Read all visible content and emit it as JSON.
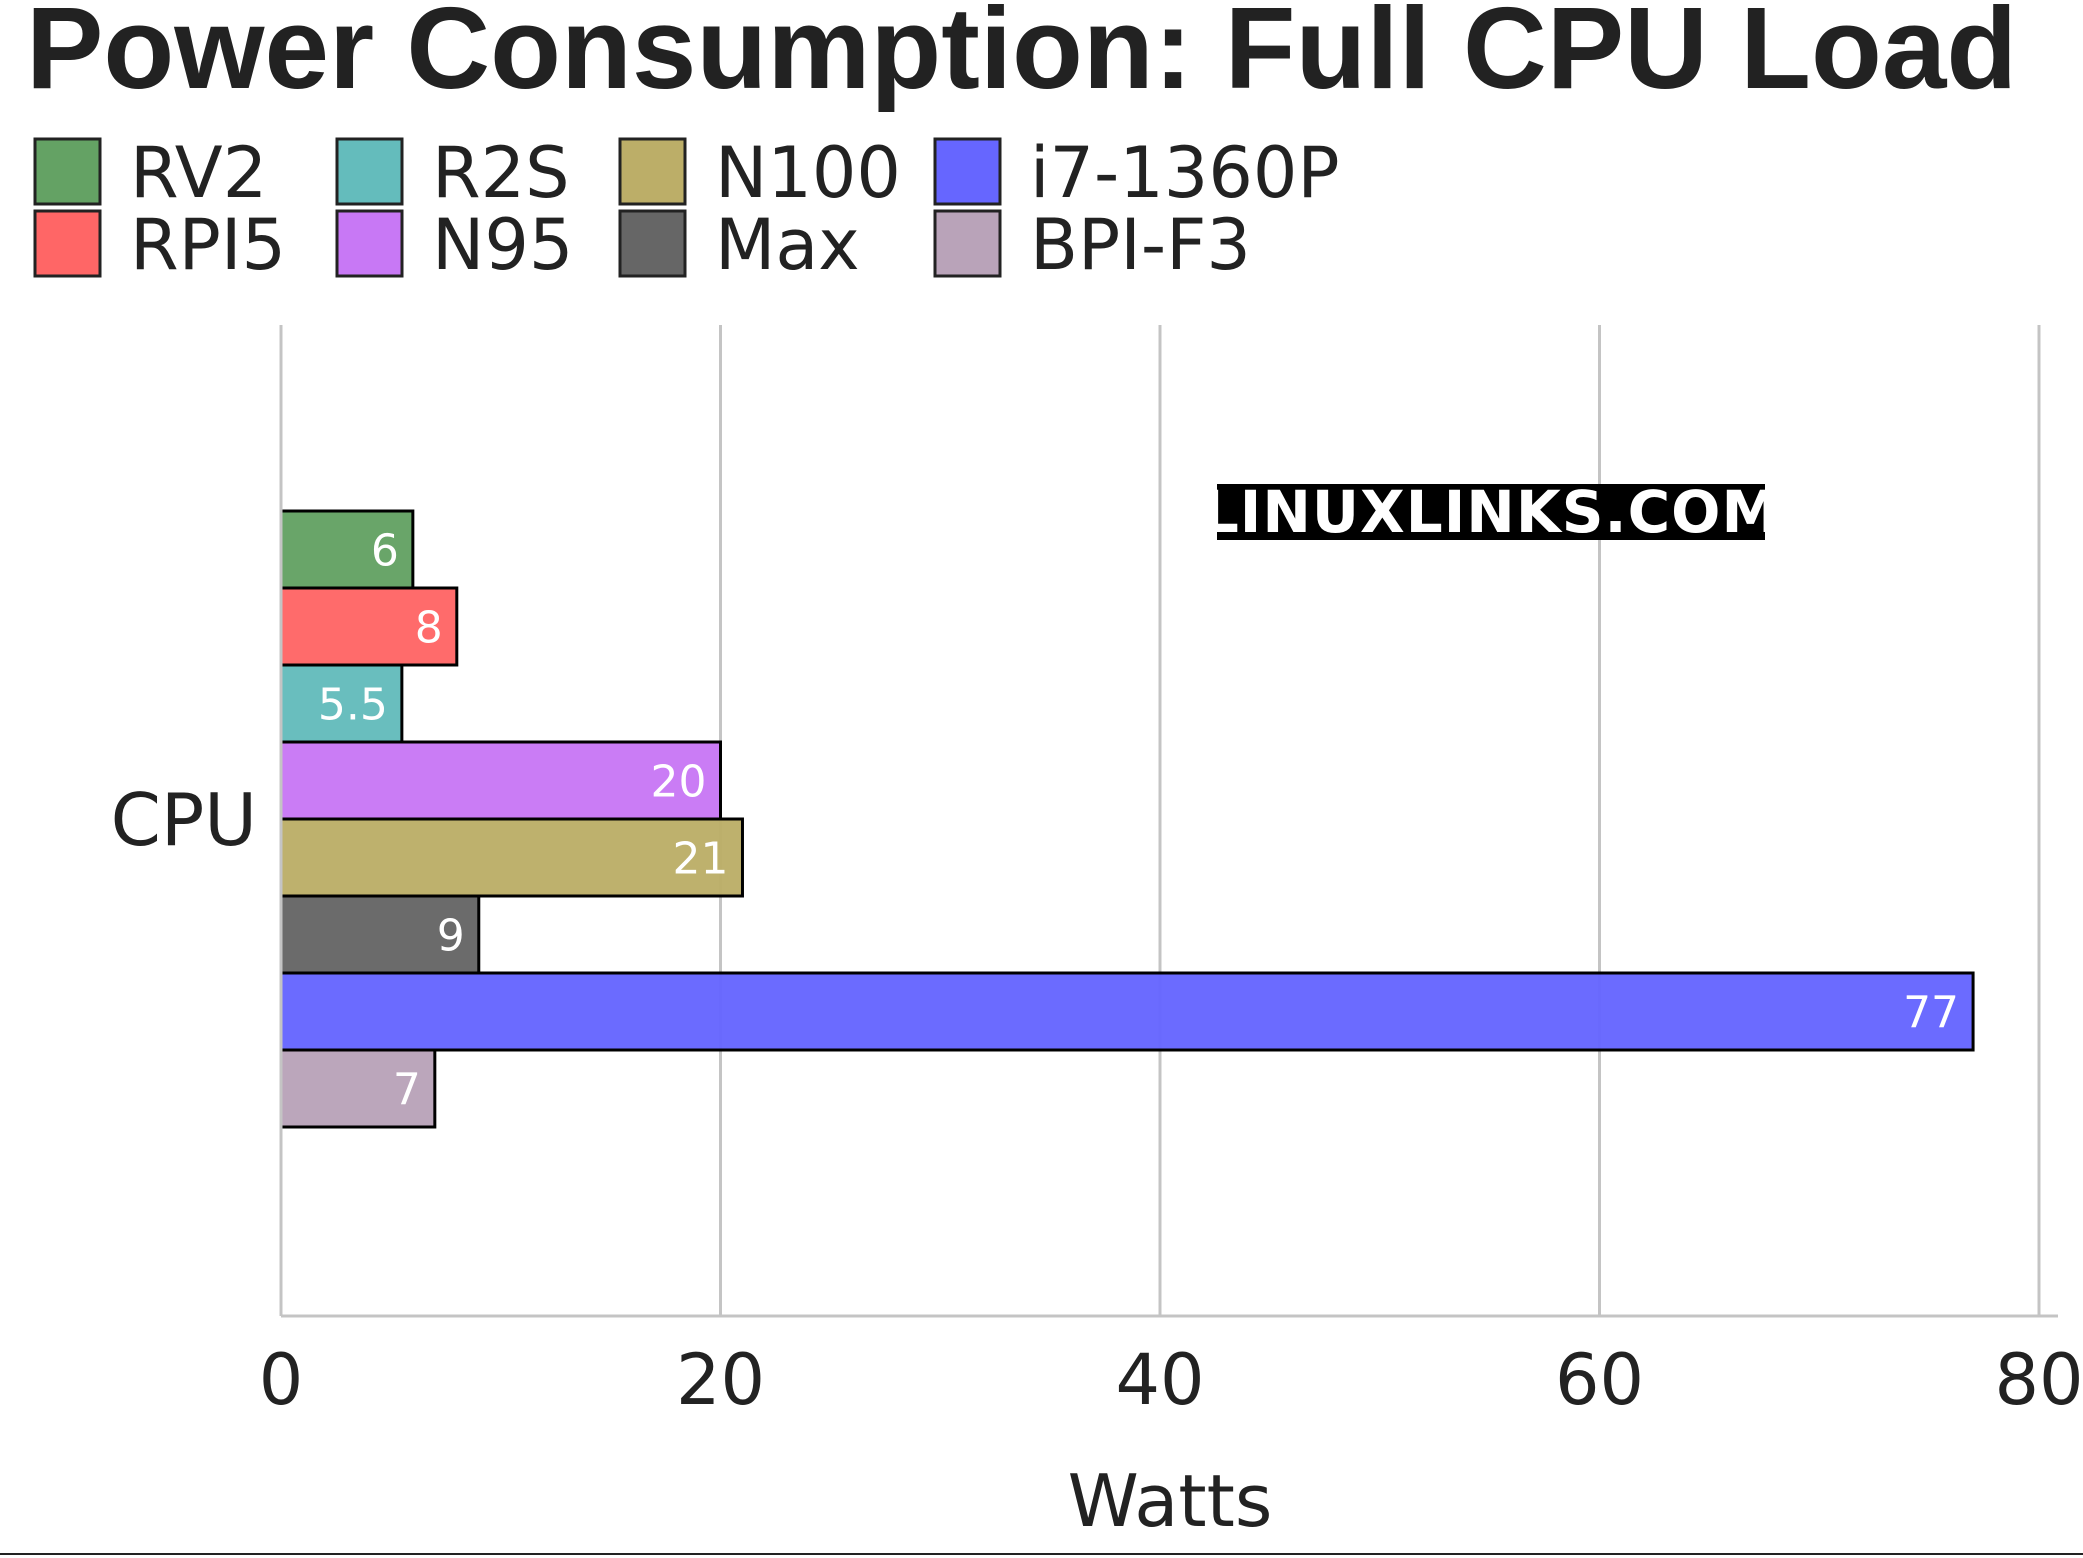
{
  "chart_data": {
    "type": "bar",
    "orientation": "horizontal",
    "title": "Power Consumption: Full CPU Load",
    "categories": [
      "CPU"
    ],
    "series": [
      {
        "name": "RV2",
        "values": [
          6
        ],
        "color": "#64a264"
      },
      {
        "name": "RPI5",
        "values": [
          8
        ],
        "color": "#ff6666"
      },
      {
        "name": "R2S",
        "values": [
          5.5
        ],
        "color": "#64bcbc"
      },
      {
        "name": "N95",
        "values": [
          20
        ],
        "color": "#c878f5"
      },
      {
        "name": "N100",
        "values": [
          21
        ],
        "color": "#bcae68"
      },
      {
        "name": "Max",
        "values": [
          9
        ],
        "color": "#666666"
      },
      {
        "name": "i7-1360P",
        "values": [
          77
        ],
        "color": "#6666ff"
      },
      {
        "name": "BPI-F3",
        "values": [
          7
        ],
        "color": "#b9a3b9"
      }
    ],
    "legend_order": [
      "RV2",
      "R2S",
      "N100",
      "i7-1360P",
      "RPI5",
      "N95",
      "Max",
      "BPI-F3"
    ],
    "legend_placement": "top-left",
    "xlabel": "Watts",
    "ylabel": "",
    "xlim": [
      0,
      80
    ],
    "xticks": [
      0,
      20,
      40,
      60,
      80
    ],
    "grid": true,
    "watermark": "LINUXLINKS.COM"
  }
}
